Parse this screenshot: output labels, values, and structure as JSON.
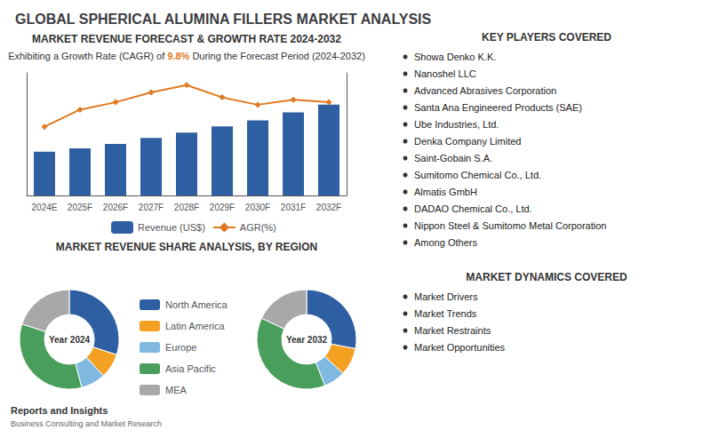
{
  "title": "GLOBAL SPHERICAL ALUMINA FILLERS MARKET ANALYSIS",
  "chart_data": [
    {
      "type": "bar",
      "title": "MARKET REVENUE FORECAST & GROWTH RATE 2024-2032",
      "subtitle": [
        {
          "text": "Exhibiting a Growth Rate (CAGR) of "
        },
        {
          "text": "9.8%",
          "color": "#e07820"
        },
        {
          "text": " During the Forecast Period (2024-2032)"
        }
      ],
      "categories": [
        "2024E",
        "2025F",
        "2026F",
        "2027F",
        "2028F",
        "2029F",
        "2030F",
        "2031F",
        "2032F"
      ],
      "series": [
        {
          "name": "Revenue (US$)",
          "type": "bar",
          "color": "#2e5fa3",
          "values": [
            1.0,
            1.08,
            1.18,
            1.32,
            1.44,
            1.58,
            1.72,
            1.9,
            2.08
          ]
        },
        {
          "name": "AGR(%)",
          "type": "line",
          "color": "#e07820",
          "marker": "diamond",
          "axis": "y2",
          "values": [
            2.8,
            3.5,
            3.8,
            4.2,
            4.5,
            4.0,
            3.7,
            3.9,
            3.8
          ]
        }
      ],
      "ylim": [
        0,
        2.808
      ],
      "y2lim": [
        0,
        5
      ],
      "tick_labels": "x",
      "grid": false,
      "legend": "bottom"
    },
    {
      "type": "pie",
      "title": "MARKET REVENUE SHARE ANALYSIS, BY REGION",
      "categories": [
        "North America",
        "Latin America",
        "Europe",
        "Asia Pacific",
        "MEA"
      ],
      "colors": [
        "#2e5fa3",
        "#f4a023",
        "#7fb8e0",
        "#4a9e5c",
        "#a8a8a8"
      ],
      "series": [
        {
          "name": "Year 2024",
          "values": [
            30,
            8,
            8,
            34,
            20
          ]
        },
        {
          "name": "Year 2032",
          "values": [
            28,
            9,
            7,
            38,
            18
          ]
        }
      ],
      "legend": "center"
    }
  ],
  "panels": [
    {
      "title": "KEY PLAYERS COVERED",
      "items": [
        "Showa Denko K.K.",
        "Nanoshel LLC",
        "Advanced Abrasives Corporation",
        "Santa Ana Engineered Products (SAE)",
        "Ube Industries, Ltd.",
        "Denka Company Limited",
        "Saint-Gobain S.A.",
        "Sumitomo Chemical Co., Ltd.",
        "Almatis GmbH",
        "DADAO Chemical Co., Ltd.",
        "Nippon Steel & Sumitomo Metal Corporation",
        "Among Others"
      ]
    },
    {
      "title": "MARKET DYNAMICS COVERED",
      "items": [
        "Market Drivers",
        "Market Trends",
        "Market Restraints",
        "Market Opportunities"
      ]
    }
  ],
  "annotations": [
    "Reports and Insights",
    "Business Consulting and Market Research"
  ]
}
